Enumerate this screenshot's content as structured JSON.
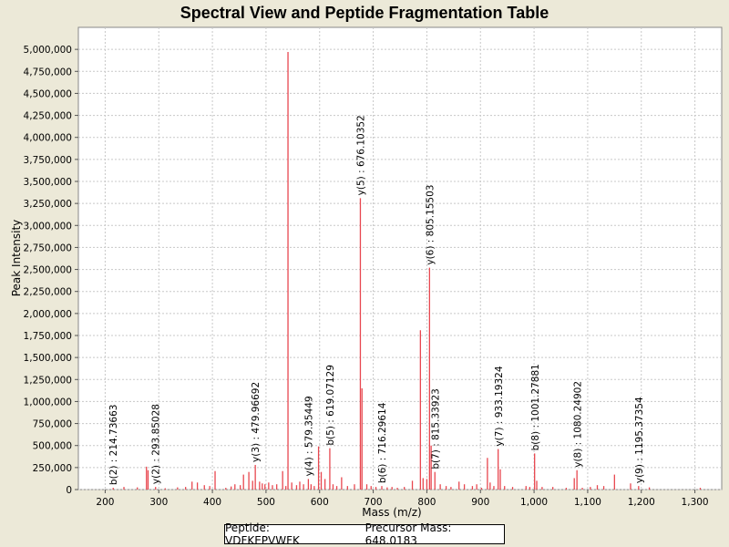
{
  "chart_data": {
    "type": "bar",
    "title": "Spectral View and Peptide Fragmentation Table",
    "xlabel": "Mass (m/z)",
    "ylabel": "Peak Intensity",
    "xlim": [
      150,
      1350
    ],
    "ylim": [
      0,
      5250000
    ],
    "x_ticks": [
      200,
      300,
      400,
      500,
      600,
      700,
      800,
      900,
      1000,
      1100,
      1200,
      1300
    ],
    "x_tick_labels": [
      "200",
      "300",
      "400",
      "500",
      "600",
      "700",
      "800",
      "900",
      "1,000",
      "1,100",
      "1,200",
      "1,300"
    ],
    "y_ticks": [
      0,
      250000,
      500000,
      750000,
      1000000,
      1250000,
      1500000,
      1750000,
      2000000,
      2250000,
      2500000,
      2750000,
      3000000,
      3250000,
      3500000,
      3750000,
      4000000,
      4250000,
      4500000,
      4750000,
      5000000
    ],
    "y_tick_labels": [
      "0",
      "250,000",
      "500,000",
      "750,000",
      "1,000,000",
      "1,250,000",
      "1,500,000",
      "1,750,000",
      "2,000,000",
      "2,250,000",
      "2,500,000",
      "2,750,000",
      "3,000,000",
      "3,250,000",
      "3,500,000",
      "3,750,000",
      "4,000,000",
      "4,250,000",
      "4,500,000",
      "4,750,000",
      "5,000,000"
    ],
    "grid": true,
    "peak_color": "#e8474f",
    "peaks": [
      [
        215,
        20000
      ],
      [
        235,
        30000
      ],
      [
        260,
        25000
      ],
      [
        277,
        260000
      ],
      [
        280,
        220000
      ],
      [
        294,
        30000
      ],
      [
        312,
        15000
      ],
      [
        335,
        25000
      ],
      [
        350,
        30000
      ],
      [
        362,
        90000
      ],
      [
        372,
        80000
      ],
      [
        385,
        50000
      ],
      [
        395,
        40000
      ],
      [
        405,
        210000
      ],
      [
        425,
        20000
      ],
      [
        435,
        35000
      ],
      [
        442,
        60000
      ],
      [
        452,
        50000
      ],
      [
        458,
        170000
      ],
      [
        468,
        200000
      ],
      [
        475,
        100000
      ],
      [
        480,
        280000
      ],
      [
        488,
        90000
      ],
      [
        493,
        70000
      ],
      [
        498,
        60000
      ],
      [
        505,
        80000
      ],
      [
        512,
        50000
      ],
      [
        520,
        60000
      ],
      [
        531,
        210000
      ],
      [
        537,
        40000
      ],
      [
        541,
        4970000
      ],
      [
        548,
        80000
      ],
      [
        557,
        50000
      ],
      [
        563,
        90000
      ],
      [
        570,
        60000
      ],
      [
        579,
        120000
      ],
      [
        584,
        60000
      ],
      [
        590,
        40000
      ],
      [
        598,
        490000
      ],
      [
        603,
        200000
      ],
      [
        610,
        120000
      ],
      [
        619,
        470000
      ],
      [
        625,
        60000
      ],
      [
        632,
        40000
      ],
      [
        641,
        140000
      ],
      [
        652,
        40000
      ],
      [
        665,
        60000
      ],
      [
        676,
        3310000
      ],
      [
        679,
        1150000
      ],
      [
        688,
        60000
      ],
      [
        696,
        40000
      ],
      [
        705,
        30000
      ],
      [
        716,
        40000
      ],
      [
        726,
        25000
      ],
      [
        735,
        30000
      ],
      [
        745,
        20000
      ],
      [
        758,
        30000
      ],
      [
        773,
        100000
      ],
      [
        788,
        1810000
      ],
      [
        793,
        130000
      ],
      [
        800,
        120000
      ],
      [
        805,
        2520000
      ],
      [
        808,
        500000
      ],
      [
        815,
        200000
      ],
      [
        825,
        60000
      ],
      [
        836,
        40000
      ],
      [
        845,
        30000
      ],
      [
        860,
        90000
      ],
      [
        870,
        60000
      ],
      [
        885,
        40000
      ],
      [
        893,
        60000
      ],
      [
        902,
        20000
      ],
      [
        913,
        360000
      ],
      [
        918,
        80000
      ],
      [
        925,
        40000
      ],
      [
        933,
        460000
      ],
      [
        937,
        230000
      ],
      [
        945,
        40000
      ],
      [
        960,
        30000
      ],
      [
        985,
        40000
      ],
      [
        992,
        30000
      ],
      [
        1001,
        410000
      ],
      [
        1005,
        100000
      ],
      [
        1015,
        30000
      ],
      [
        1035,
        30000
      ],
      [
        1060,
        20000
      ],
      [
        1075,
        130000
      ],
      [
        1080,
        220000
      ],
      [
        1090,
        20000
      ],
      [
        1105,
        30000
      ],
      [
        1118,
        50000
      ],
      [
        1130,
        40000
      ],
      [
        1150,
        170000
      ],
      [
        1180,
        70000
      ],
      [
        1195,
        40000
      ],
      [
        1215,
        25000
      ],
      [
        1310,
        20000
      ]
    ],
    "annotations": [
      {
        "label": "b(2) : 214.73663",
        "x": 214.74,
        "y": 20000
      },
      {
        "label": "y(2) : 293.85028",
        "x": 293.85,
        "y": 30000
      },
      {
        "label": "y(3) : 479.96692",
        "x": 479.97,
        "y": 280000
      },
      {
        "label": "y(4) : 579.35449",
        "x": 579.35,
        "y": 120000
      },
      {
        "label": "b(5) : 619.07129",
        "x": 619.07,
        "y": 470000
      },
      {
        "label": "y(5) : 676.10352",
        "x": 676.1,
        "y": 3310000
      },
      {
        "label": "b(6) : 716.29614",
        "x": 716.3,
        "y": 40000
      },
      {
        "label": "y(6) : 805.15503",
        "x": 805.16,
        "y": 2520000
      },
      {
        "label": "b(7) : 815.33923",
        "x": 815.34,
        "y": 200000
      },
      {
        "label": "y(7) : 933.19324",
        "x": 933.19,
        "y": 460000
      },
      {
        "label": "b(8) : 1001.27881",
        "x": 1001.28,
        "y": 410000
      },
      {
        "label": "y(8) : 1080.24902",
        "x": 1080.25,
        "y": 220000
      },
      {
        "label": "y(9) : 1195.37354",
        "x": 1195.37,
        "y": 40000
      }
    ]
  },
  "legend": {
    "peptide": "Peptide: VDFKEPVWFK",
    "precursor": "Precursor Mass: 648.0183"
  }
}
